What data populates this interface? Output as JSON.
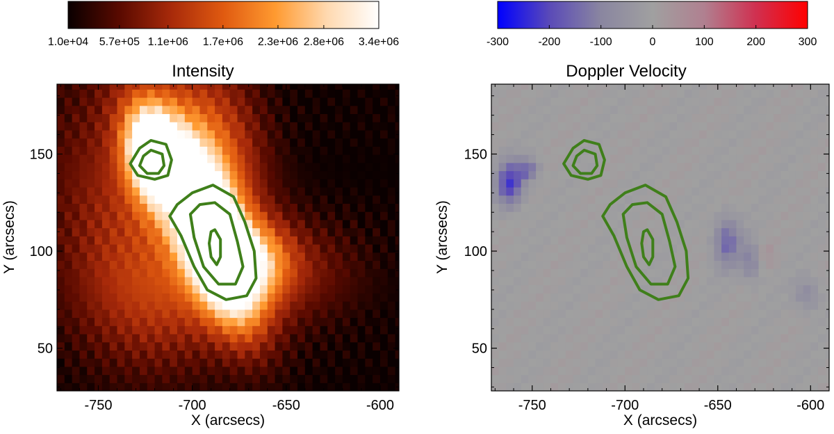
{
  "chart_data": [
    {
      "type": "heatmap",
      "title": "Intensity",
      "xlabel": "X (arcsecs)",
      "ylabel": "Y (arcsecs)",
      "xlim": [
        -772,
        -590
      ],
      "ylim": [
        28,
        186
      ],
      "x_ticks": [
        -750,
        -700,
        -650,
        -600
      ],
      "y_ticks": [
        50,
        100,
        150
      ],
      "colorbar": {
        "colormap": "red-temperature",
        "range": [
          10000,
          3400000
        ],
        "tick_values": [
          10000,
          570000,
          1100000,
          1700000,
          2300000,
          2800000,
          3400000
        ],
        "tick_labels": [
          "1.0e+04",
          "5.7e+05",
          "1.1e+06",
          "1.7e+06",
          "2.3e+06",
          "2.8e+06",
          "3.4e+06"
        ],
        "colors": [
          "#0a0000",
          "#5a0a00",
          "#a82a0a",
          "#e05a10",
          "#ff9a30",
          "#ffd9b0",
          "#ffffff"
        ]
      },
      "contour_color": "#3f7f1a"
    },
    {
      "type": "heatmap",
      "title": "Doppler Velocity",
      "xlabel": "X (arcsecs)",
      "ylabel": "Y (arcsecs)",
      "xlim": [
        -772,
        -590
      ],
      "ylim": [
        28,
        186
      ],
      "x_ticks": [
        -750,
        -700,
        -650,
        -600
      ],
      "y_ticks": [
        50,
        100,
        150
      ],
      "colorbar": {
        "colormap": "blue-grey-red",
        "range": [
          -300,
          300
        ],
        "tick_values": [
          -300,
          -200,
          -100,
          0,
          100,
          200,
          300
        ],
        "tick_labels": [
          "-300",
          "-200",
          "-100",
          "0",
          "100",
          "200",
          "300"
        ],
        "colors": [
          "#0000ff",
          "#5a4ab8",
          "#8a86a0",
          "#a0a0a0",
          "#b08090",
          "#d03050",
          "#ff0000"
        ]
      },
      "contour_color": "#3f7f1a"
    }
  ]
}
